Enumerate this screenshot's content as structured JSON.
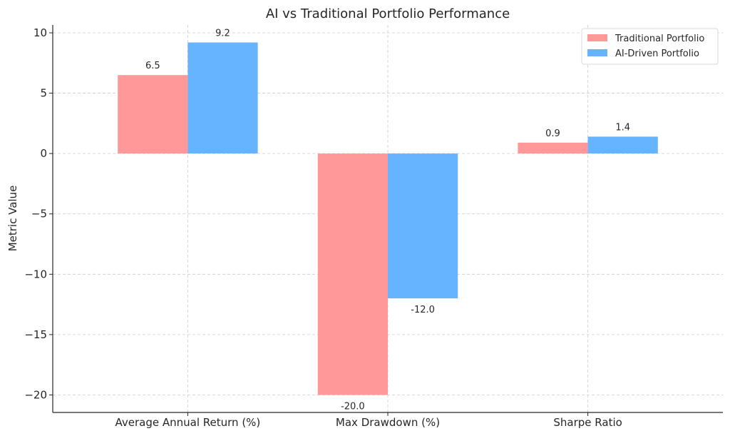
{
  "chart_data": {
    "type": "bar",
    "title": "AI vs Traditional Portfolio Performance",
    "xlabel": "",
    "ylabel": "Metric Value",
    "categories": [
      "Average Annual Return (%)",
      "Max Drawdown (%)",
      "Sharpe Ratio"
    ],
    "series": [
      {
        "name": "Traditional Portfolio",
        "values": [
          6.5,
          -20.0,
          0.9
        ],
        "color": "#ff9999",
        "labels": [
          "6.5",
          "-20.0",
          "0.9"
        ]
      },
      {
        "name": "AI-Driven Portfolio",
        "values": [
          9.2,
          -12.0,
          1.4
        ],
        "color": "#66b3ff",
        "labels": [
          "9.2",
          "-12.0",
          "1.4"
        ]
      }
    ],
    "ylim": [
      -21.45,
      10.65
    ],
    "yticks": [
      10,
      5,
      0,
      -5,
      -10,
      -15,
      -20
    ],
    "ytick_labels": [
      "10",
      "5",
      "0",
      "−5",
      "−10",
      "−15",
      "−20"
    ],
    "grid": true,
    "legend_position": "top-right"
  }
}
